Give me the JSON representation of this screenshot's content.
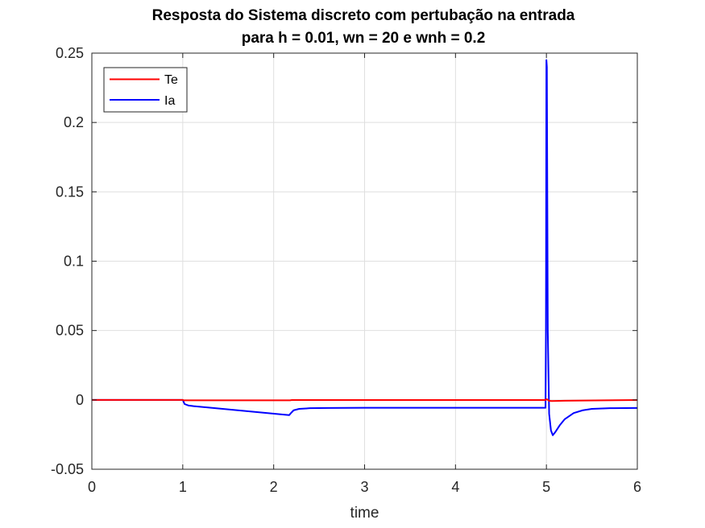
{
  "chart_data": {
    "type": "line",
    "title": "Resposta do Sistema discreto com pertubação na entrada",
    "subtitle": "para h = 0.01, wn = 20 e wnh = 0.2",
    "xlabel": "time",
    "ylabel": "",
    "xlim": [
      0,
      6
    ],
    "ylim": [
      -0.05,
      0.25
    ],
    "xticks": [
      0,
      1,
      2,
      3,
      4,
      5,
      6
    ],
    "xtick_labels": [
      "0",
      "1",
      "2",
      "3",
      "4",
      "5",
      "6"
    ],
    "yticks": [
      -0.05,
      0,
      0.05,
      0.1,
      0.15,
      0.2,
      0.25
    ],
    "ytick_labels": [
      "-0.05",
      "0",
      "0.05",
      "0.1",
      "0.15",
      "0.2",
      "0.25"
    ],
    "grid": true,
    "legend_position": "top-left",
    "series": [
      {
        "name": "Te",
        "color": "#ff0000",
        "x": [
          0,
          1,
          1.01,
          2.18,
          2.2,
          4.99,
          5.0,
          5.01,
          5.03,
          5.06,
          5.2,
          6.0
        ],
        "y": [
          0,
          0,
          -0.0003,
          -0.0003,
          -0.0001,
          -0.0001,
          0.0005,
          0.0003,
          -0.0007,
          -0.0008,
          -0.0006,
          -0.0001
        ]
      },
      {
        "name": "Ia",
        "color": "#0000ff",
        "x": [
          0,
          1.0,
          1.02,
          1.06,
          1.12,
          2.17,
          2.19,
          2.22,
          2.28,
          2.4,
          2.6,
          3.0,
          4.0,
          4.99,
          4.995,
          5.0,
          5.005,
          5.015,
          5.03,
          5.05,
          5.07,
          5.1,
          5.15,
          5.2,
          5.3,
          5.4,
          5.5,
          5.7,
          6.0
        ],
        "y": [
          0,
          0,
          -0.003,
          -0.004,
          -0.0045,
          -0.011,
          -0.0095,
          -0.0075,
          -0.0065,
          -0.006,
          -0.0058,
          -0.0057,
          -0.0057,
          -0.0057,
          0.05,
          0.245,
          0.24,
          0.05,
          -0.01,
          -0.022,
          -0.0255,
          -0.023,
          -0.018,
          -0.014,
          -0.0095,
          -0.0075,
          -0.0065,
          -0.006,
          -0.0058
        ]
      }
    ]
  }
}
